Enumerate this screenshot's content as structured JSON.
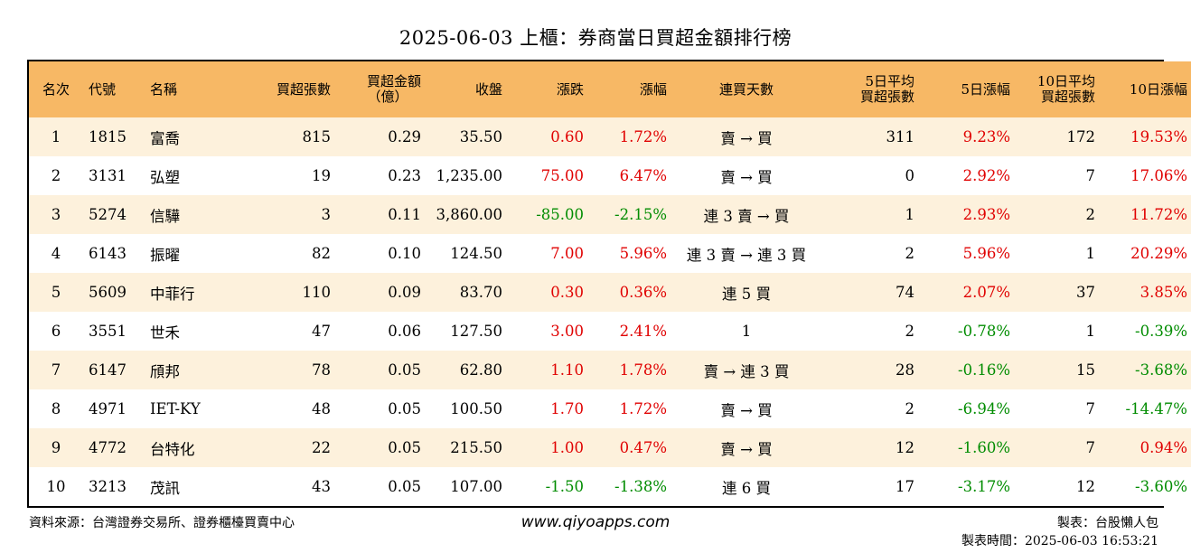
{
  "title": "2025-06-03 上櫃：券商當日買超金額排行榜",
  "headers": {
    "rank": "名次",
    "code": "代號",
    "name": "名稱",
    "buy_lots": "買超張數",
    "amount_l1": "買超金額",
    "amount_l2": "（億）",
    "close": "收盤",
    "change": "漲跌",
    "pct": "漲幅",
    "streak": "連買天數",
    "avg5_l1": "5日平均",
    "avg5_l2": "買超張數",
    "pct5": "5日漲幅",
    "avg10_l1": "10日平均",
    "avg10_l2": "買超張數",
    "pct10": "10日漲幅"
  },
  "rows": [
    {
      "rank": "1",
      "code": "1815",
      "name": "富喬",
      "lots": "815",
      "amount": "0.29",
      "close": "35.50",
      "change": "0.60",
      "pct": "1.72%",
      "streak": "賣 → 買",
      "avg5": "311",
      "pct5": "9.23%",
      "avg10": "172",
      "pct10": "19.53%"
    },
    {
      "rank": "2",
      "code": "3131",
      "name": "弘塑",
      "lots": "19",
      "amount": "0.23",
      "close": "1,235.00",
      "change": "75.00",
      "pct": "6.47%",
      "streak": "賣 → 買",
      "avg5": "0",
      "pct5": "2.92%",
      "avg10": "7",
      "pct10": "17.06%"
    },
    {
      "rank": "3",
      "code": "5274",
      "name": "信驊",
      "lots": "3",
      "amount": "0.11",
      "close": "3,860.00",
      "change": "-85.00",
      "pct": "-2.15%",
      "streak": "連 3 賣 → 買",
      "avg5": "1",
      "pct5": "2.93%",
      "avg10": "2",
      "pct10": "11.72%"
    },
    {
      "rank": "4",
      "code": "6143",
      "name": "振曜",
      "lots": "82",
      "amount": "0.10",
      "close": "124.50",
      "change": "7.00",
      "pct": "5.96%",
      "streak": "連 3 賣 → 連 3 買",
      "avg5": "2",
      "pct5": "5.96%",
      "avg10": "1",
      "pct10": "20.29%"
    },
    {
      "rank": "5",
      "code": "5609",
      "name": "中菲行",
      "lots": "110",
      "amount": "0.09",
      "close": "83.70",
      "change": "0.30",
      "pct": "0.36%",
      "streak": "連 5 買",
      "avg5": "74",
      "pct5": "2.07%",
      "avg10": "37",
      "pct10": "3.85%"
    },
    {
      "rank": "6",
      "code": "3551",
      "name": "世禾",
      "lots": "47",
      "amount": "0.06",
      "close": "127.50",
      "change": "3.00",
      "pct": "2.41%",
      "streak": "1",
      "avg5": "2",
      "pct5": "-0.78%",
      "avg10": "1",
      "pct10": "-0.39%"
    },
    {
      "rank": "7",
      "code": "6147",
      "name": "頎邦",
      "lots": "78",
      "amount": "0.05",
      "close": "62.80",
      "change": "1.10",
      "pct": "1.78%",
      "streak": "賣 → 連 3 買",
      "avg5": "28",
      "pct5": "-0.16%",
      "avg10": "15",
      "pct10": "-3.68%"
    },
    {
      "rank": "8",
      "code": "4971",
      "name": "IET-KY",
      "lots": "48",
      "amount": "0.05",
      "close": "100.50",
      "change": "1.70",
      "pct": "1.72%",
      "streak": "賣 → 買",
      "avg5": "2",
      "pct5": "-6.94%",
      "avg10": "7",
      "pct10": "-14.47%"
    },
    {
      "rank": "9",
      "code": "4772",
      "name": "台特化",
      "lots": "22",
      "amount": "0.05",
      "close": "215.50",
      "change": "1.00",
      "pct": "0.47%",
      "streak": "賣 → 買",
      "avg5": "12",
      "pct5": "-1.60%",
      "avg10": "7",
      "pct10": "0.94%"
    },
    {
      "rank": "10",
      "code": "3213",
      "name": "茂訊",
      "lots": "43",
      "amount": "0.05",
      "close": "107.00",
      "change": "-1.50",
      "pct": "-1.38%",
      "streak": "連 6 買",
      "avg5": "17",
      "pct5": "-3.17%",
      "avg10": "12",
      "pct10": "-3.60%"
    }
  ],
  "footer": {
    "source": "資料來源：台灣證券交易所、證券櫃檯買賣中心",
    "website": "www.qiyoapps.com",
    "maker": "製表：台股懶人包",
    "time": "製表時間：2025-06-03 16:53:21"
  },
  "colors": {
    "header_bg": "#f7b865",
    "odd_row_bg": "#fdf1dc",
    "up": "#e00000",
    "down": "#008c00"
  }
}
